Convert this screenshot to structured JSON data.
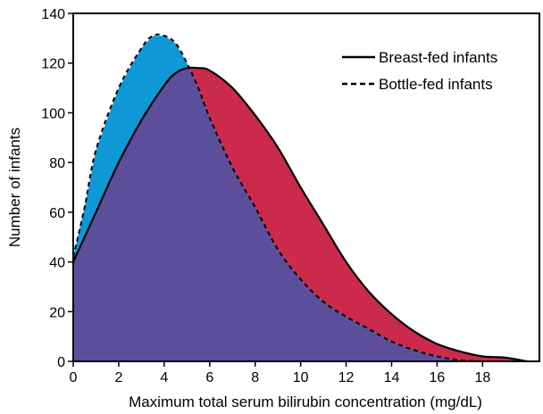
{
  "chart_data": {
    "type": "area",
    "title": "",
    "xlabel": "Maximum total serum bilirubin concentration (mg/dL)",
    "ylabel": "Number of infants",
    "xlim": [
      0,
      20.5
    ],
    "ylim": [
      0,
      140
    ],
    "x_ticks": [
      0,
      2,
      4,
      6,
      8,
      10,
      12,
      14,
      16,
      18
    ],
    "x_tick_labels": [
      "0",
      "2",
      "4",
      "6",
      "8",
      "10",
      "12",
      "14",
      "16",
      "18"
    ],
    "y_ticks": [
      0,
      20,
      40,
      60,
      80,
      100,
      120,
      140
    ],
    "y_tick_labels": [
      "0",
      "20",
      "40",
      "60",
      "80",
      "100",
      "120",
      "140"
    ],
    "legend_position": "top-right",
    "grid": false,
    "series": [
      {
        "name": "Breast-fed infants",
        "line_style": "solid",
        "x": [
          0,
          1,
          2,
          3,
          4,
          4.5,
          5,
          5.5,
          6,
          7,
          8,
          9,
          10,
          11,
          12,
          13,
          14,
          15,
          16,
          17,
          18,
          19,
          20,
          20.5
        ],
        "y": [
          40,
          60,
          80,
          97,
          111,
          116,
          118,
          118,
          117,
          110,
          99,
          86,
          70,
          55,
          40,
          28,
          19,
          12,
          7,
          4,
          2,
          1.5,
          0,
          0
        ]
      },
      {
        "name": "Bottle-fed infants",
        "line_style": "dashed",
        "x": [
          0,
          0.5,
          1,
          2,
          3,
          3.5,
          4,
          4.5,
          5,
          5.5,
          6,
          7,
          8,
          9,
          10,
          11,
          12,
          13,
          14,
          15,
          16,
          17,
          18,
          19,
          20,
          20.5
        ],
        "y": [
          42,
          62,
          85,
          110,
          126,
          131,
          131,
          128,
          120,
          110,
          98,
          78,
          62,
          45,
          33,
          24,
          18,
          13,
          8,
          4.5,
          2,
          0.5,
          0,
          0,
          0,
          0
        ]
      }
    ],
    "colors": {
      "overlap": "#5d4e9b",
      "bottle_only": "#0e98d5",
      "breast_only": "#cc2a4b",
      "line": "#000000"
    }
  }
}
